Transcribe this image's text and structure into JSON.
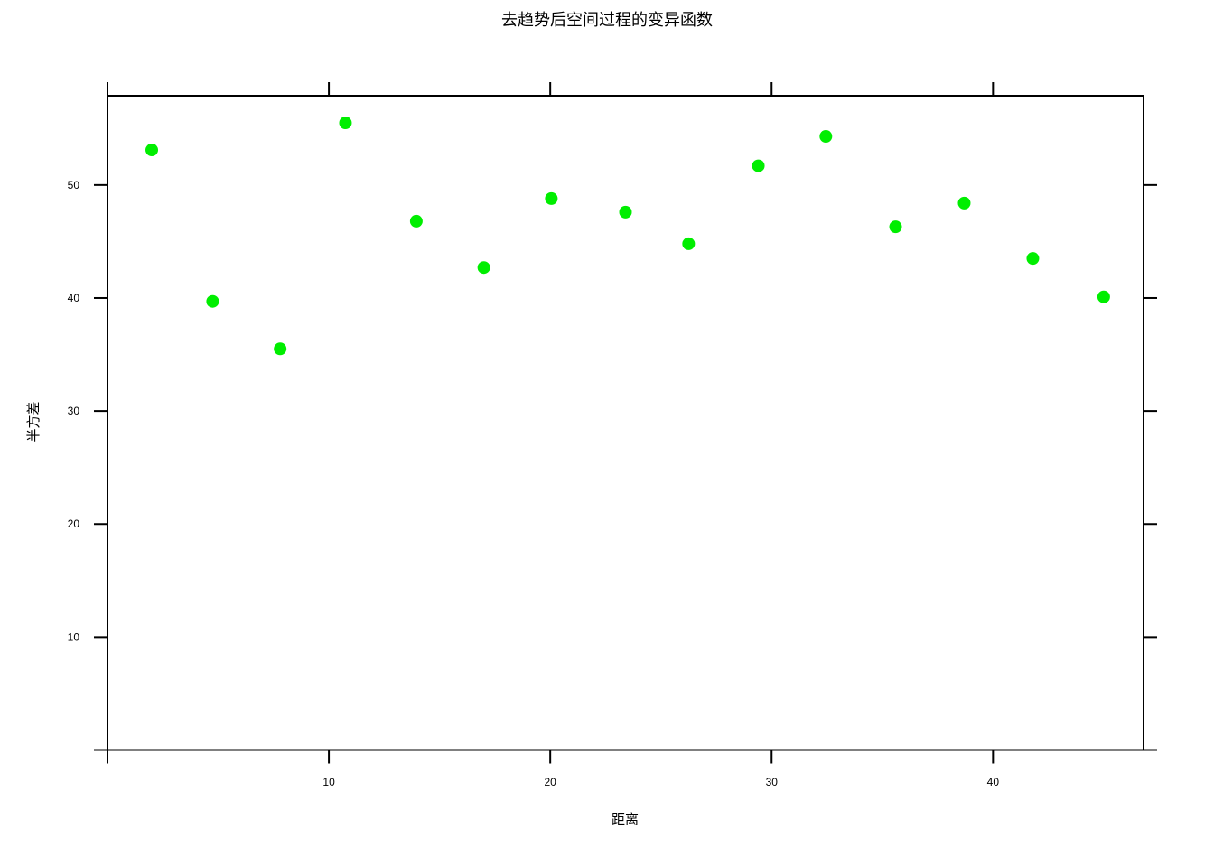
{
  "chart_data": {
    "type": "scatter",
    "title": "去趋势后空间过程的变异函数",
    "xlabel": "距离",
    "ylabel": "半方差",
    "xlim": [
      0,
      46.8
    ],
    "ylim": [
      0,
      57.9
    ],
    "xticks": [
      10,
      20,
      30,
      40
    ],
    "yticks": [
      10,
      20,
      30,
      40,
      50
    ],
    "xtick_labels": [
      "10",
      "20",
      "30",
      "40"
    ],
    "ytick_labels": [
      "10",
      "20",
      "30",
      "40",
      "50"
    ],
    "grid": false,
    "marker_color": "#00ee00",
    "series": [
      {
        "x": [
          2.0,
          4.75,
          7.8,
          10.75,
          13.95,
          17.0,
          20.05,
          23.4,
          26.25,
          29.4,
          32.45,
          35.6,
          38.7,
          41.8,
          45.0
        ],
        "y": [
          53.1,
          39.7,
          35.5,
          55.5,
          46.8,
          42.7,
          48.8,
          47.6,
          44.8,
          51.7,
          54.3,
          46.3,
          48.4,
          43.5,
          40.1
        ]
      }
    ]
  }
}
